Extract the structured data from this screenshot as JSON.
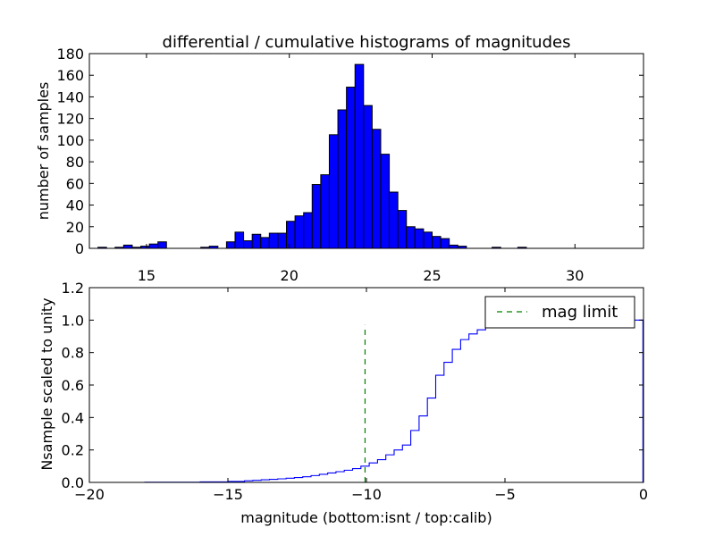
{
  "chart_data": [
    {
      "type": "bar",
      "panel": "top",
      "title": "differential / cumulative histograms of magnitudes",
      "xlabel": "",
      "ylabel": "number of samples",
      "xlim": [
        13.0,
        32.4
      ],
      "ylim": [
        0,
        180
      ],
      "x_ticks_position": "bottom",
      "x_ticks": [
        15,
        20,
        25,
        30
      ],
      "y_ticks": [
        0,
        20,
        40,
        60,
        80,
        100,
        120,
        140,
        160,
        180
      ],
      "bar_color": "#0000ff",
      "bin_width": 0.3,
      "bin_start": 13.0,
      "values": [
        0,
        1,
        0,
        1,
        3,
        1,
        2,
        4,
        6,
        0,
        0,
        0,
        0,
        1,
        2,
        0,
        6,
        15,
        7,
        13,
        10,
        14,
        14,
        25,
        30,
        33,
        59,
        68,
        105,
        128,
        149,
        170,
        132,
        110,
        87,
        52,
        35,
        20,
        18,
        15,
        11,
        9,
        3,
        2,
        0,
        0,
        0,
        1,
        0,
        0,
        1,
        0,
        0,
        0,
        0,
        0,
        0,
        0,
        0,
        0,
        0,
        0,
        0,
        0
      ]
    },
    {
      "type": "line",
      "panel": "bottom",
      "title": "",
      "xlabel": "magnitude (bottom:isnt / top:calib)",
      "ylabel": "Nsample scaled to unity",
      "xlim": [
        -20,
        0
      ],
      "ylim": [
        0.0,
        1.2
      ],
      "x_ticks": [
        -20,
        -15,
        -10,
        -5,
        0
      ],
      "x_tick_labels": [
        "−20",
        "−15",
        "−10",
        "−5",
        "0"
      ],
      "y_ticks": [
        0.0,
        0.2,
        0.4,
        0.6,
        0.8,
        1.0,
        1.2
      ],
      "y_tick_labels": [
        "0.0",
        "0.2",
        "0.4",
        "0.6",
        "0.8",
        "1.0",
        "1.2"
      ],
      "legend_position": "top-right",
      "series": [
        {
          "role": "cumulative",
          "color": "#0000ff",
          "style": "steps",
          "x": [
            -20.0,
            -18.0,
            -16.0,
            -15.0,
            -14.4,
            -14.1,
            -13.8,
            -13.5,
            -13.2,
            -12.9,
            -12.6,
            -12.3,
            -12.0,
            -11.7,
            -11.4,
            -11.1,
            -10.8,
            -10.5,
            -10.2,
            -9.9,
            -9.6,
            -9.3,
            -9.0,
            -8.7,
            -8.4,
            -8.1,
            -7.8,
            -7.5,
            -7.2,
            -6.9,
            -6.6,
            -6.3,
            -6.0,
            -5.7,
            -5.4,
            -5.1,
            -4.8,
            -4.5,
            -4.2,
            -3.9,
            -3.6,
            -3.0,
            -2.0,
            -1.0,
            -0.02
          ],
          "y": [
            0.0,
            0.001,
            0.003,
            0.006,
            0.01,
            0.013,
            0.016,
            0.019,
            0.022,
            0.026,
            0.03,
            0.035,
            0.042,
            0.05,
            0.058,
            0.066,
            0.075,
            0.085,
            0.1,
            0.12,
            0.14,
            0.17,
            0.2,
            0.23,
            0.32,
            0.41,
            0.52,
            0.66,
            0.74,
            0.82,
            0.88,
            0.915,
            0.94,
            0.955,
            0.965,
            0.975,
            0.982,
            0.988,
            0.992,
            0.995,
            0.997,
            0.998,
            0.999,
            1.0,
            1.0
          ]
        },
        {
          "role": "mag-limit",
          "name": "mag limit",
          "color": "#008000",
          "style": "dashed",
          "x": [
            -10.05,
            -10.05
          ],
          "y": [
            0.0,
            0.97
          ]
        }
      ]
    }
  ]
}
